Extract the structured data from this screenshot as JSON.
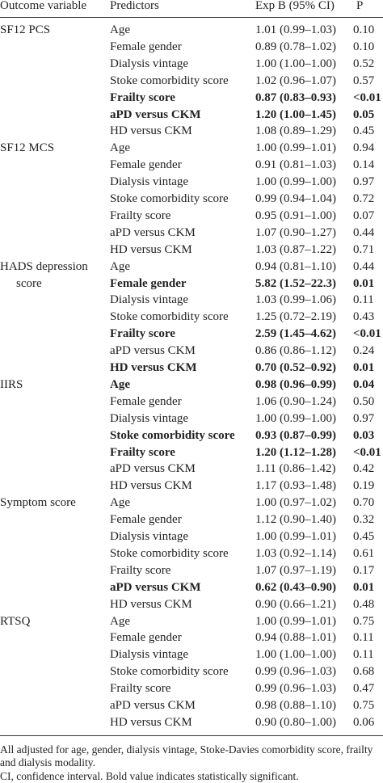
{
  "header": {
    "outcome": "Outcome variable",
    "predictors": "Predictors",
    "estimate": "Exp B (95% CI)",
    "p": "P"
  },
  "groups": [
    {
      "outcome": [
        "SF12 PCS"
      ],
      "rows": [
        [
          "Age",
          "1.01 (0.99–1.03)",
          "0.10"
        ],
        [
          "Female gender",
          "0.89 (0.78–1.02)",
          "0.10"
        ],
        [
          "Dialysis vintage",
          "1.00 (1.00–1.00)",
          "0.52"
        ],
        [
          "Stoke comorbidity score",
          "1.02 (0.96–1.07)",
          "0.57"
        ],
        [
          "Frailty score",
          "0.87 (0.83–0.93)",
          "<0.01"
        ],
        [
          "aPD versus CKM",
          "1.20 (1.00–1.45)",
          "0.05"
        ],
        [
          "HD versus CKM",
          "1.08 (0.89–1.29)",
          "0.45"
        ]
      ],
      "bold": [
        false,
        false,
        false,
        false,
        true,
        true,
        false
      ]
    },
    {
      "outcome": [
        "SF12 MCS"
      ],
      "rows": [
        [
          "Age",
          "1.00 (0.99–1.01)",
          "0.94"
        ],
        [
          "Female gender",
          "0.91 (0.81–1.03)",
          "0.14"
        ],
        [
          "Dialysis vintage",
          "1.00 (0.99–1.00)",
          "0.97"
        ],
        [
          "Stoke comorbidity score",
          "0.99 (0.94–1.04)",
          "0.72"
        ],
        [
          "Frailty score",
          "0.95 (0.91–1.00)",
          "0.07"
        ],
        [
          "aPD versus CKM",
          "1.07 (0.90–1.27)",
          "0.44"
        ],
        [
          "HD versus CKM",
          "1.03 (0.87–1.22)",
          "0.71"
        ]
      ],
      "bold": [
        false,
        false,
        false,
        false,
        false,
        false,
        false
      ]
    },
    {
      "outcome": [
        "HADS depression",
        "score"
      ],
      "rows": [
        [
          "Age",
          "0.94 (0.81–1.10)",
          "0.44"
        ],
        [
          "Female gender",
          "5.82 (1.52–22.3)",
          "0.01"
        ],
        [
          "Dialysis vintage",
          "1.03 (0.99–1.06)",
          "0.11"
        ],
        [
          "Stoke comorbidity score",
          "1.25 (0.72–2.19)",
          "0.43"
        ],
        [
          "Frailty score",
          "2.59 (1.45–4.62)",
          "<0.01"
        ],
        [
          "aPD versus CKM",
          "0.86 (0.86–1.12)",
          "0.24"
        ],
        [
          "HD versus CKM",
          "0.70 (0.52–0.92)",
          "0.01"
        ]
      ],
      "bold": [
        false,
        true,
        false,
        false,
        true,
        false,
        true
      ]
    },
    {
      "outcome": [
        "IIRS"
      ],
      "rows": [
        [
          "Age",
          "0.98 (0.96–0.99)",
          "0.04"
        ],
        [
          "Female gender",
          "1.06 (0.90–1.24)",
          "0.50"
        ],
        [
          "Dialysis vintage",
          "1.00 (0.99–1.00)",
          "0.97"
        ],
        [
          "Stoke comorbidity score",
          "0.93 (0.87–0.99)",
          "0.03"
        ],
        [
          "Frailty score",
          "1.20 (1.12–1.28)",
          "<0.01"
        ],
        [
          "aPD versus CKM",
          "1.11 (0.86–1.42)",
          "0.42"
        ],
        [
          "HD versus CKM",
          "1.17 (0.93–1.48)",
          "0.19"
        ]
      ],
      "bold": [
        true,
        false,
        false,
        true,
        true,
        false,
        false
      ]
    },
    {
      "outcome": [
        "Symptom score"
      ],
      "rows": [
        [
          "Age",
          "1.00 (0.97–1.02)",
          "0.70"
        ],
        [
          "Female gender",
          "1.12 (0.90–1.40)",
          "0.32"
        ],
        [
          "Dialysis vintage",
          "1.00 (0.99–1.01)",
          "0.45"
        ],
        [
          "Stoke comorbidity score",
          "1.03 (0.92–1.14)",
          "0.61"
        ],
        [
          "Frailty score",
          "1.07 (0.97–1.19)",
          "0.17"
        ],
        [
          "aPD versus CKM",
          "0.62 (0.43–0.90)",
          "0.01"
        ],
        [
          "HD versus CKM",
          "0.90 (0.66–1.21)",
          "0.48"
        ]
      ],
      "bold": [
        false,
        false,
        false,
        false,
        false,
        true,
        false
      ]
    },
    {
      "outcome": [
        "RTSQ"
      ],
      "rows": [
        [
          "Age",
          "1.00 (0.99–1.01)",
          "0.75"
        ],
        [
          "Female gender",
          "0.94 (0.88–1.01)",
          "0.11"
        ],
        [
          "Dialysis vintage",
          "1.00 (1.00–1.00)",
          "0.11"
        ],
        [
          "Stoke comorbidity score",
          "0.99 (0.96–1.03)",
          "0.68"
        ],
        [
          "Frailty score",
          "0.99 (0.96–1.03)",
          "0.47"
        ],
        [
          "aPD versus CKM",
          "0.98 (0.88–1.10)",
          "0.75"
        ],
        [
          "HD versus CKM",
          "0.90 (0.80–1.00)",
          "0.06"
        ]
      ],
      "bold": [
        false,
        false,
        false,
        false,
        false,
        false,
        false
      ]
    }
  ],
  "footnotes": [
    "All adjusted for age, gender, dialysis vintage, Stoke-Davies comorbidity score, frailty and dialysis modality.",
    "CI, confidence interval. Bold value indicates statistically significant."
  ]
}
